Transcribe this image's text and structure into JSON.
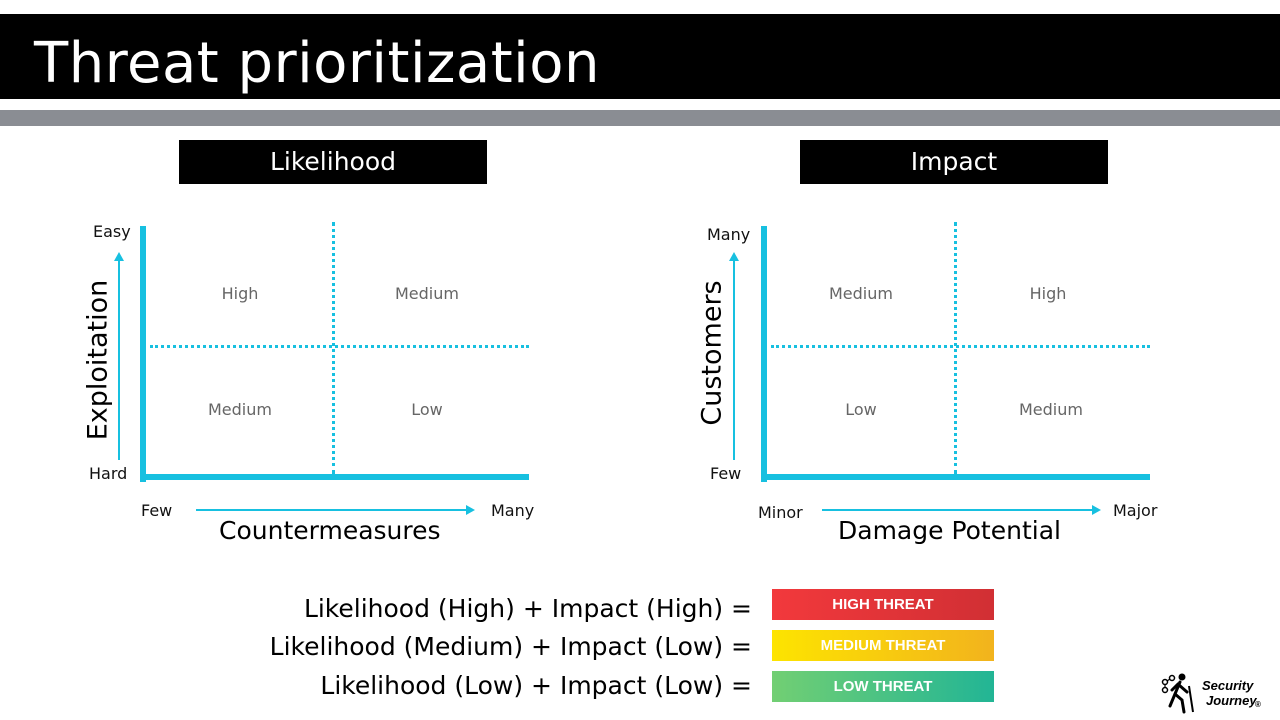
{
  "title": "Threat prioritization",
  "likelihood": {
    "header": "Likelihood",
    "y_top": "Easy",
    "y_bottom": "Hard",
    "y_title": "Exploitation",
    "x_left": "Few",
    "x_right": "Many",
    "x_title": "Countermeasures",
    "quadrants": {
      "top_left": "High",
      "top_right": "Medium",
      "bottom_left": "Medium",
      "bottom_right": "Low"
    }
  },
  "impact": {
    "header": "Impact",
    "y_top": "Many",
    "y_bottom": "Few",
    "y_title": "Customers",
    "x_left": "Minor",
    "x_right": "Major",
    "x_title": "Damage Potential",
    "quadrants": {
      "top_left": "Medium",
      "top_right": "High",
      "bottom_left": "Low",
      "bottom_right": "Medium"
    }
  },
  "equations": [
    {
      "formula": "Likelihood (High) + Impact (High) =",
      "result": "HIGH THREAT",
      "color": "#e53539"
    },
    {
      "formula": "Likelihood (Medium) + Impact (Low) =",
      "result": "MEDIUM THREAT",
      "color": "#f9cd0e"
    },
    {
      "formula": "Likelihood (Low) + Impact (Low) =",
      "result": "LOW THREAT",
      "color": "#4cc284"
    }
  ],
  "logo": {
    "line1": "Security",
    "line2": "Journey",
    "mark": "®"
  },
  "colors": {
    "axis": "#17c0e0",
    "gray_bar": "#8a8d93"
  }
}
